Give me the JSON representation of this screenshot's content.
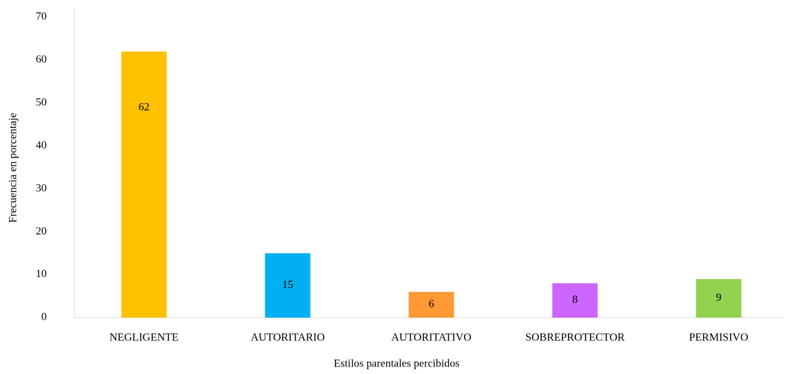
{
  "chart_data": {
    "type": "bar",
    "xlabel": "Estilos parentales percibidos",
    "ylabel": "Frecuencia en porcentaje",
    "categories": [
      "NEGLIGENTE",
      "AUTORITARIO",
      "AUTORITATIVO",
      "SOBREPROTECTOR",
      "PERMISIVO"
    ],
    "values": [
      62,
      15,
      6,
      8,
      9
    ],
    "colors": [
      "#ffc000",
      "#00b0f0",
      "#ff9933",
      "#cc66ff",
      "#92d050"
    ],
    "ylim": [
      0,
      70
    ],
    "yticks": [
      0,
      10,
      20,
      30,
      40,
      50,
      60,
      70
    ],
    "grid": false
  }
}
